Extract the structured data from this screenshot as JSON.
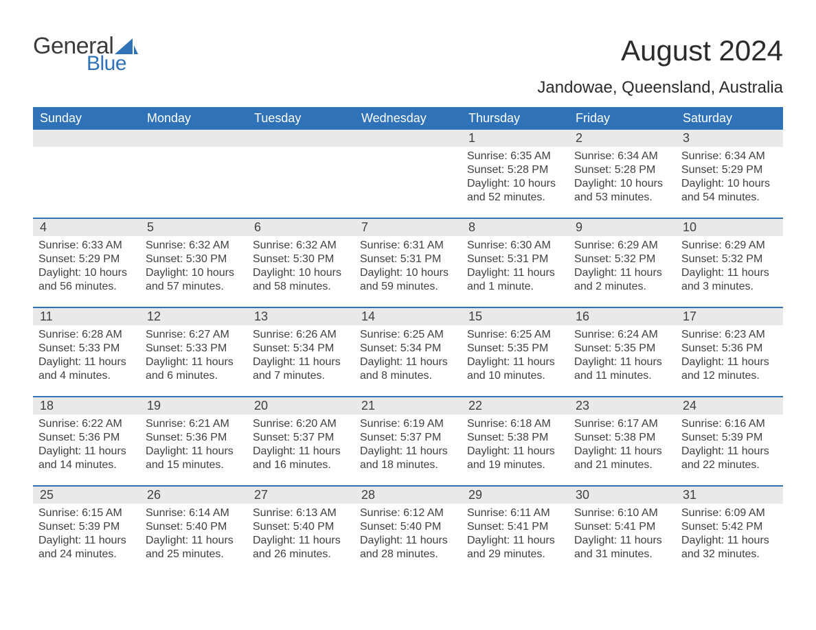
{
  "brand": {
    "general": "General",
    "blue": "Blue"
  },
  "title": "August 2024",
  "location": "Jandowae, Queensland, Australia",
  "colors": {
    "header_bg": "#2f72b8",
    "header_fg": "#ffffff",
    "date_strip_bg": "#e9e9e9",
    "text": "#404040",
    "page_bg": "#ffffff",
    "logo_blue": "#2f72b8",
    "logo_dark": "#3b3b3b"
  },
  "typography": {
    "title_fontsize": 42,
    "location_fontsize": 24,
    "dayheader_fontsize": 18,
    "date_fontsize": 18,
    "info_fontsize": 16
  },
  "day_names": [
    "Sunday",
    "Monday",
    "Tuesday",
    "Wednesday",
    "Thursday",
    "Friday",
    "Saturday"
  ],
  "weeks": [
    [
      {
        "date": "",
        "sunrise": "",
        "sunset": "",
        "daylight": ""
      },
      {
        "date": "",
        "sunrise": "",
        "sunset": "",
        "daylight": ""
      },
      {
        "date": "",
        "sunrise": "",
        "sunset": "",
        "daylight": ""
      },
      {
        "date": "",
        "sunrise": "",
        "sunset": "",
        "daylight": ""
      },
      {
        "date": "1",
        "sunrise": "Sunrise: 6:35 AM",
        "sunset": "Sunset: 5:28 PM",
        "daylight": "Daylight: 10 hours and 52 minutes."
      },
      {
        "date": "2",
        "sunrise": "Sunrise: 6:34 AM",
        "sunset": "Sunset: 5:28 PM",
        "daylight": "Daylight: 10 hours and 53 minutes."
      },
      {
        "date": "3",
        "sunrise": "Sunrise: 6:34 AM",
        "sunset": "Sunset: 5:29 PM",
        "daylight": "Daylight: 10 hours and 54 minutes."
      }
    ],
    [
      {
        "date": "4",
        "sunrise": "Sunrise: 6:33 AM",
        "sunset": "Sunset: 5:29 PM",
        "daylight": "Daylight: 10 hours and 56 minutes."
      },
      {
        "date": "5",
        "sunrise": "Sunrise: 6:32 AM",
        "sunset": "Sunset: 5:30 PM",
        "daylight": "Daylight: 10 hours and 57 minutes."
      },
      {
        "date": "6",
        "sunrise": "Sunrise: 6:32 AM",
        "sunset": "Sunset: 5:30 PM",
        "daylight": "Daylight: 10 hours and 58 minutes."
      },
      {
        "date": "7",
        "sunrise": "Sunrise: 6:31 AM",
        "sunset": "Sunset: 5:31 PM",
        "daylight": "Daylight: 10 hours and 59 minutes."
      },
      {
        "date": "8",
        "sunrise": "Sunrise: 6:30 AM",
        "sunset": "Sunset: 5:31 PM",
        "daylight": "Daylight: 11 hours and 1 minute."
      },
      {
        "date": "9",
        "sunrise": "Sunrise: 6:29 AM",
        "sunset": "Sunset: 5:32 PM",
        "daylight": "Daylight: 11 hours and 2 minutes."
      },
      {
        "date": "10",
        "sunrise": "Sunrise: 6:29 AM",
        "sunset": "Sunset: 5:32 PM",
        "daylight": "Daylight: 11 hours and 3 minutes."
      }
    ],
    [
      {
        "date": "11",
        "sunrise": "Sunrise: 6:28 AM",
        "sunset": "Sunset: 5:33 PM",
        "daylight": "Daylight: 11 hours and 4 minutes."
      },
      {
        "date": "12",
        "sunrise": "Sunrise: 6:27 AM",
        "sunset": "Sunset: 5:33 PM",
        "daylight": "Daylight: 11 hours and 6 minutes."
      },
      {
        "date": "13",
        "sunrise": "Sunrise: 6:26 AM",
        "sunset": "Sunset: 5:34 PM",
        "daylight": "Daylight: 11 hours and 7 minutes."
      },
      {
        "date": "14",
        "sunrise": "Sunrise: 6:25 AM",
        "sunset": "Sunset: 5:34 PM",
        "daylight": "Daylight: 11 hours and 8 minutes."
      },
      {
        "date": "15",
        "sunrise": "Sunrise: 6:25 AM",
        "sunset": "Sunset: 5:35 PM",
        "daylight": "Daylight: 11 hours and 10 minutes."
      },
      {
        "date": "16",
        "sunrise": "Sunrise: 6:24 AM",
        "sunset": "Sunset: 5:35 PM",
        "daylight": "Daylight: 11 hours and 11 minutes."
      },
      {
        "date": "17",
        "sunrise": "Sunrise: 6:23 AM",
        "sunset": "Sunset: 5:36 PM",
        "daylight": "Daylight: 11 hours and 12 minutes."
      }
    ],
    [
      {
        "date": "18",
        "sunrise": "Sunrise: 6:22 AM",
        "sunset": "Sunset: 5:36 PM",
        "daylight": "Daylight: 11 hours and 14 minutes."
      },
      {
        "date": "19",
        "sunrise": "Sunrise: 6:21 AM",
        "sunset": "Sunset: 5:36 PM",
        "daylight": "Daylight: 11 hours and 15 minutes."
      },
      {
        "date": "20",
        "sunrise": "Sunrise: 6:20 AM",
        "sunset": "Sunset: 5:37 PM",
        "daylight": "Daylight: 11 hours and 16 minutes."
      },
      {
        "date": "21",
        "sunrise": "Sunrise: 6:19 AM",
        "sunset": "Sunset: 5:37 PM",
        "daylight": "Daylight: 11 hours and 18 minutes."
      },
      {
        "date": "22",
        "sunrise": "Sunrise: 6:18 AM",
        "sunset": "Sunset: 5:38 PM",
        "daylight": "Daylight: 11 hours and 19 minutes."
      },
      {
        "date": "23",
        "sunrise": "Sunrise: 6:17 AM",
        "sunset": "Sunset: 5:38 PM",
        "daylight": "Daylight: 11 hours and 21 minutes."
      },
      {
        "date": "24",
        "sunrise": "Sunrise: 6:16 AM",
        "sunset": "Sunset: 5:39 PM",
        "daylight": "Daylight: 11 hours and 22 minutes."
      }
    ],
    [
      {
        "date": "25",
        "sunrise": "Sunrise: 6:15 AM",
        "sunset": "Sunset: 5:39 PM",
        "daylight": "Daylight: 11 hours and 24 minutes."
      },
      {
        "date": "26",
        "sunrise": "Sunrise: 6:14 AM",
        "sunset": "Sunset: 5:40 PM",
        "daylight": "Daylight: 11 hours and 25 minutes."
      },
      {
        "date": "27",
        "sunrise": "Sunrise: 6:13 AM",
        "sunset": "Sunset: 5:40 PM",
        "daylight": "Daylight: 11 hours and 26 minutes."
      },
      {
        "date": "28",
        "sunrise": "Sunrise: 6:12 AM",
        "sunset": "Sunset: 5:40 PM",
        "daylight": "Daylight: 11 hours and 28 minutes."
      },
      {
        "date": "29",
        "sunrise": "Sunrise: 6:11 AM",
        "sunset": "Sunset: 5:41 PM",
        "daylight": "Daylight: 11 hours and 29 minutes."
      },
      {
        "date": "30",
        "sunrise": "Sunrise: 6:10 AM",
        "sunset": "Sunset: 5:41 PM",
        "daylight": "Daylight: 11 hours and 31 minutes."
      },
      {
        "date": "31",
        "sunrise": "Sunrise: 6:09 AM",
        "sunset": "Sunset: 5:42 PM",
        "daylight": "Daylight: 11 hours and 32 minutes."
      }
    ]
  ]
}
